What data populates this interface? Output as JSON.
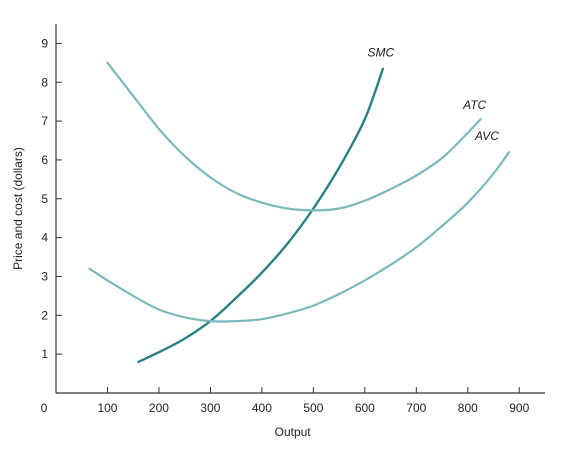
{
  "chart_data": {
    "type": "line",
    "title": "",
    "xlabel": "Output",
    "ylabel": "Price and cost (dollars)",
    "xlim": [
      0,
      950
    ],
    "ylim": [
      0,
      9.5
    ],
    "x_ticks": [
      0,
      100,
      200,
      300,
      400,
      500,
      600,
      700,
      800,
      900
    ],
    "y_ticks": [
      1,
      2,
      3,
      4,
      5,
      6,
      7,
      8,
      9
    ],
    "grid": false,
    "series": [
      {
        "name": "SMC",
        "color": "#2a7f86",
        "x": [
          160,
          200,
          250,
          300,
          350,
          400,
          450,
          500,
          550,
          600,
          635
        ],
        "y": [
          0.8,
          1.05,
          1.4,
          1.85,
          2.45,
          3.1,
          3.85,
          4.75,
          5.8,
          7.05,
          8.35
        ]
      },
      {
        "name": "ATC",
        "color": "#79b9bc",
        "x": [
          100,
          150,
          200,
          250,
          300,
          350,
          400,
          450,
          500,
          550,
          600,
          650,
          700,
          750,
          800,
          825
        ],
        "y": [
          8.5,
          7.65,
          6.8,
          6.1,
          5.55,
          5.15,
          4.9,
          4.75,
          4.7,
          4.75,
          4.95,
          5.25,
          5.6,
          6.05,
          6.7,
          7.05
        ]
      },
      {
        "name": "AVC",
        "color": "#79b9bc",
        "x": [
          65,
          100,
          150,
          200,
          250,
          300,
          350,
          400,
          450,
          500,
          550,
          600,
          650,
          700,
          750,
          800,
          850,
          880
        ],
        "y": [
          3.2,
          2.9,
          2.5,
          2.15,
          1.95,
          1.85,
          1.85,
          1.9,
          2.05,
          2.25,
          2.55,
          2.9,
          3.3,
          3.75,
          4.3,
          4.9,
          5.65,
          6.2
        ]
      }
    ]
  }
}
